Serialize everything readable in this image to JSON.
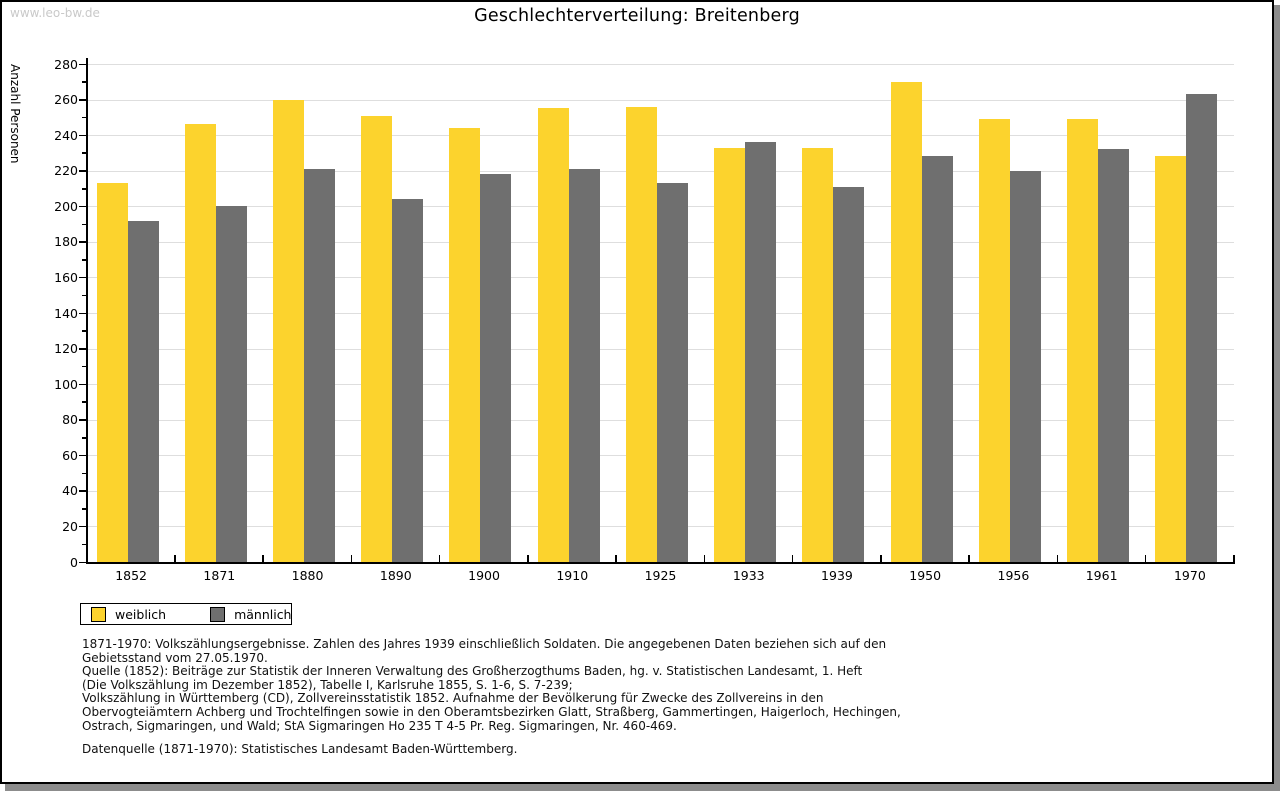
{
  "watermark": "www.leo-bw.de",
  "title": "Geschlechterverteilung: Breitenberg",
  "chart_data": {
    "type": "bar",
    "title": "Geschlechterverteilung: Breitenberg",
    "xlabel": "",
    "ylabel": "Anzahl Personen",
    "ylim": [
      0,
      280
    ],
    "ytick_step": 20,
    "ytick_minor_step": 10,
    "grid": "horizontal",
    "legend_position": "bottom-left",
    "categories": [
      "1852",
      "1871",
      "1880",
      "1890",
      "1900",
      "1910",
      "1925",
      "1933",
      "1939",
      "1950",
      "1956",
      "1961",
      "1970"
    ],
    "series": [
      {
        "name": "weiblich",
        "color": "#FCD32D",
        "values": [
          213,
          246,
          260,
          251,
          244,
          255,
          256,
          233,
          233,
          270,
          249,
          249,
          228
        ]
      },
      {
        "name": "männlich",
        "color": "#6F6F6F",
        "values": [
          192,
          200,
          221,
          204,
          218,
          221,
          213,
          236,
          211,
          228,
          220,
          232,
          263
        ]
      }
    ]
  },
  "legend": {
    "items": [
      {
        "label": "weiblich",
        "color": "#FCD32D"
      },
      {
        "label": "männlich",
        "color": "#6F6F6F"
      }
    ]
  },
  "footnotes": [
    "1871-1970: Volkszählungsergebnisse. Zahlen des Jahres 1939 einschließlich Soldaten. Die angegebenen Daten beziehen sich auf den",
    "Gebietsstand vom 27.05.1970.",
    "Quelle (1852): Beiträge zur Statistik der Inneren Verwaltung des Großherzogthums Baden, hg. v. Statistischen Landesamt, 1. Heft",
    "(Die Volkszählung im Dezember 1852), Tabelle I, Karlsruhe 1855, S. 1-6, S. 7-239;",
    "Volkszählung in Württemberg (CD), Zollvereinsstatistik 1852. Aufnahme der Bevölkerung für Zwecke des Zollvereins in den",
    "Obervogteiämtern Achberg und Trochtelfingen sowie in den Oberamtsbezirken Glatt, Straßberg, Gammertingen, Haigerloch, Hechingen,",
    "Ostrach, Sigmaringen, und Wald; StA Sigmaringen Ho 235 T 4-5 Pr. Reg. Sigmaringen, Nr. 460-469."
  ],
  "datasource": "Datenquelle (1871-1970): Statistisches Landesamt Baden-Württemberg."
}
